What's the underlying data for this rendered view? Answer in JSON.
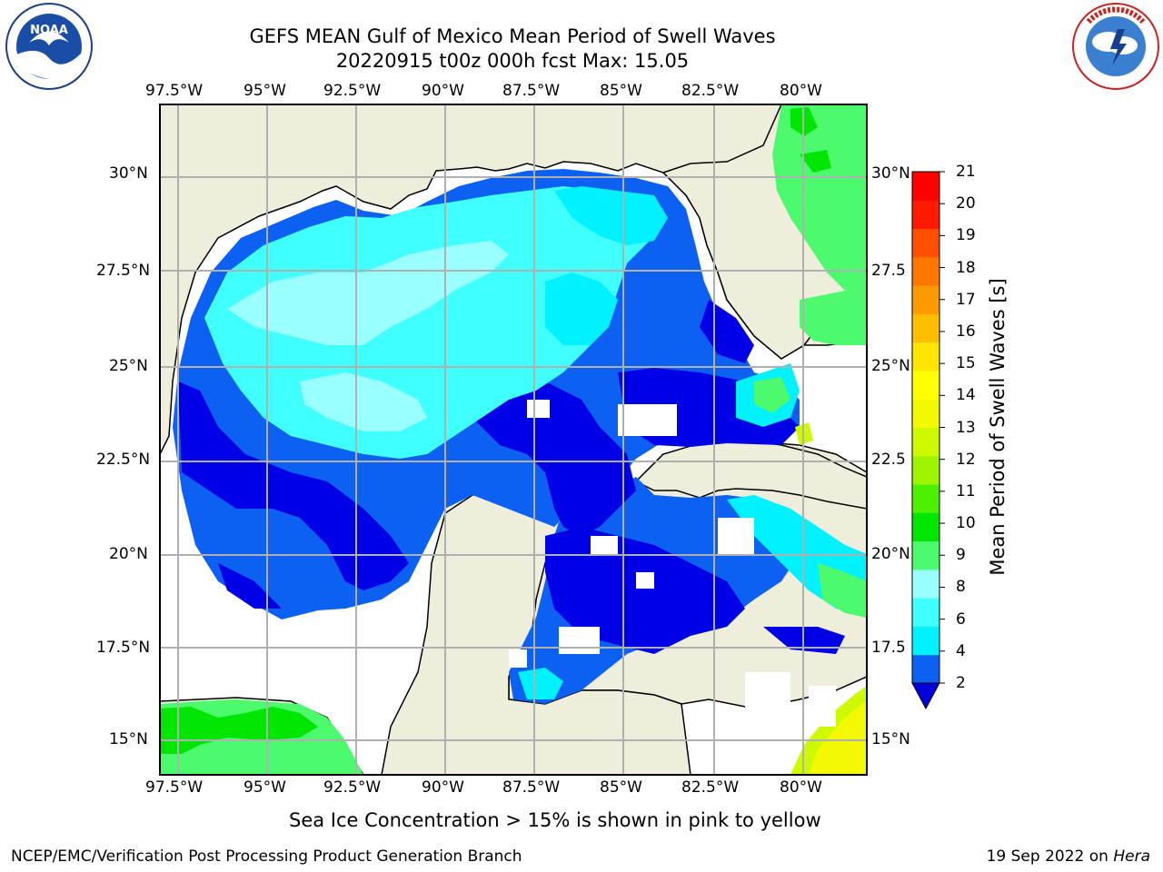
{
  "header": {
    "title_line1": "GEFS MEAN Gulf of Mexico Mean Period of Swell Waves",
    "title_line2": "20220915 t00z 000h fcst   Max: 15.05"
  },
  "logos": {
    "noaa": {
      "text": "NOAA",
      "ring_text": "NATIONAL OCEANIC AND ATMOSPHERIC ADMINISTRATION · U.S. DEPARTMENT OF COMMERCE"
    },
    "nws": {
      "ring_text": "NATIONAL WEATHER SERVICE"
    }
  },
  "map": {
    "lon_labels": [
      "97.5°W",
      "95°W",
      "92.5°W",
      "90°W",
      "87.5°W",
      "85°W",
      "82.5°W",
      "80°W"
    ],
    "lat_labels_left": [
      "30°N",
      "27.5°N",
      "25°N",
      "22.5°N",
      "20°N",
      "17.5°N",
      "15°N"
    ],
    "lat_labels_right": [
      "30°N",
      "27.5",
      "25°N",
      "22.5",
      "20°N",
      "17.5",
      "15°N"
    ],
    "land_color": "#efeedc",
    "ocean_nodata_color": "#ffffff",
    "grid": true
  },
  "colorbar": {
    "title": "Mean Period of Swell Waves [s]",
    "ticks": [
      "21",
      "20",
      "19",
      "18",
      "17",
      "16",
      "15",
      "14",
      "13",
      "12",
      "11",
      "10",
      "9",
      "8",
      "6",
      "4",
      "2"
    ],
    "colors": [
      "#0c61f3",
      "#00f1ff",
      "#40ffff",
      "#99ffff",
      "#4dfa6e",
      "#00e600",
      "#4cf000",
      "#9ef500",
      "#cdfa00",
      "#f2f900",
      "#ffff00",
      "#ffe500",
      "#ffbf00",
      "#ff9900",
      "#ff7700",
      "#ff4f00",
      "#ff1a00",
      "#ff0000"
    ],
    "extend_color": "#0000dd"
  },
  "footer": {
    "note": "Sea Ice Concentration > 15% is shown in pink to yellow",
    "left": "NCEP/EMC/Verification Post Processing Product Generation Branch",
    "right_prefix": "19 Sep 2022 on ",
    "right_host": "Hera"
  }
}
